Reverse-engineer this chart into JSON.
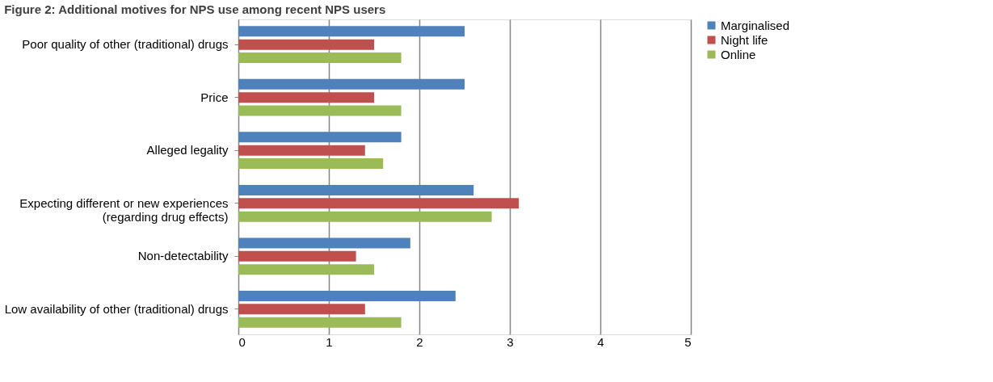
{
  "chart_data": {
    "type": "bar",
    "orientation": "horizontal",
    "title": "Figure 2:    Additional motives for NPS use among recent NPS users",
    "categories": [
      "Poor quality of other (traditional) drugs",
      "Price",
      "Alleged legality",
      "Expecting different or new experiences\n(regarding drug effects)",
      "Non-detectability",
      "Low availability of other (traditional) drugs"
    ],
    "series": [
      {
        "name": "Marginalised",
        "color": "#4f81bd",
        "values": [
          2.5,
          2.5,
          1.8,
          2.6,
          1.9,
          2.4
        ]
      },
      {
        "name": "Night life",
        "color": "#c0504d",
        "values": [
          1.5,
          1.5,
          1.4,
          3.1,
          1.3,
          1.4
        ]
      },
      {
        "name": "Online",
        "color": "#9bbb59",
        "values": [
          1.8,
          1.8,
          1.6,
          2.8,
          1.5,
          1.8
        ]
      }
    ],
    "xlim": [
      0,
      5
    ],
    "xticks": [
      0,
      1,
      2,
      3,
      4,
      5
    ],
    "grid": "x",
    "legend": "right"
  }
}
